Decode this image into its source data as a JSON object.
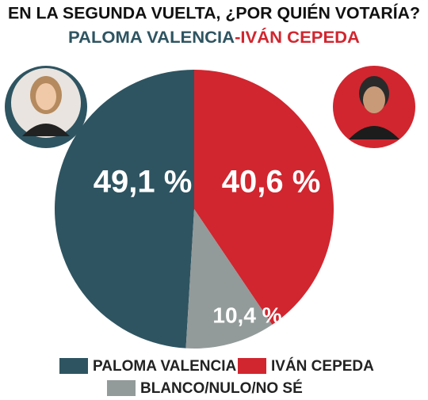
{
  "chart_data": {
    "type": "pie",
    "title": "EN LA SEGUNDA VUELTA, ¿POR QUIÉN VOTARÍA?",
    "subtitle": [
      "PALOMA VALENCIA",
      "-IVÁN CEPEDA"
    ],
    "categories": [
      "PALOMA VALENCIA",
      "IVÁN CEPEDA",
      "BLANCO/NULO/NO SÉ"
    ],
    "values": [
      49.1,
      40.6,
      10.4
    ],
    "value_labels": [
      "49,1 %",
      "40,6 %",
      "10,4 %"
    ],
    "colors": [
      "#2e5461",
      "#d1262f",
      "#939a9a"
    ]
  }
}
